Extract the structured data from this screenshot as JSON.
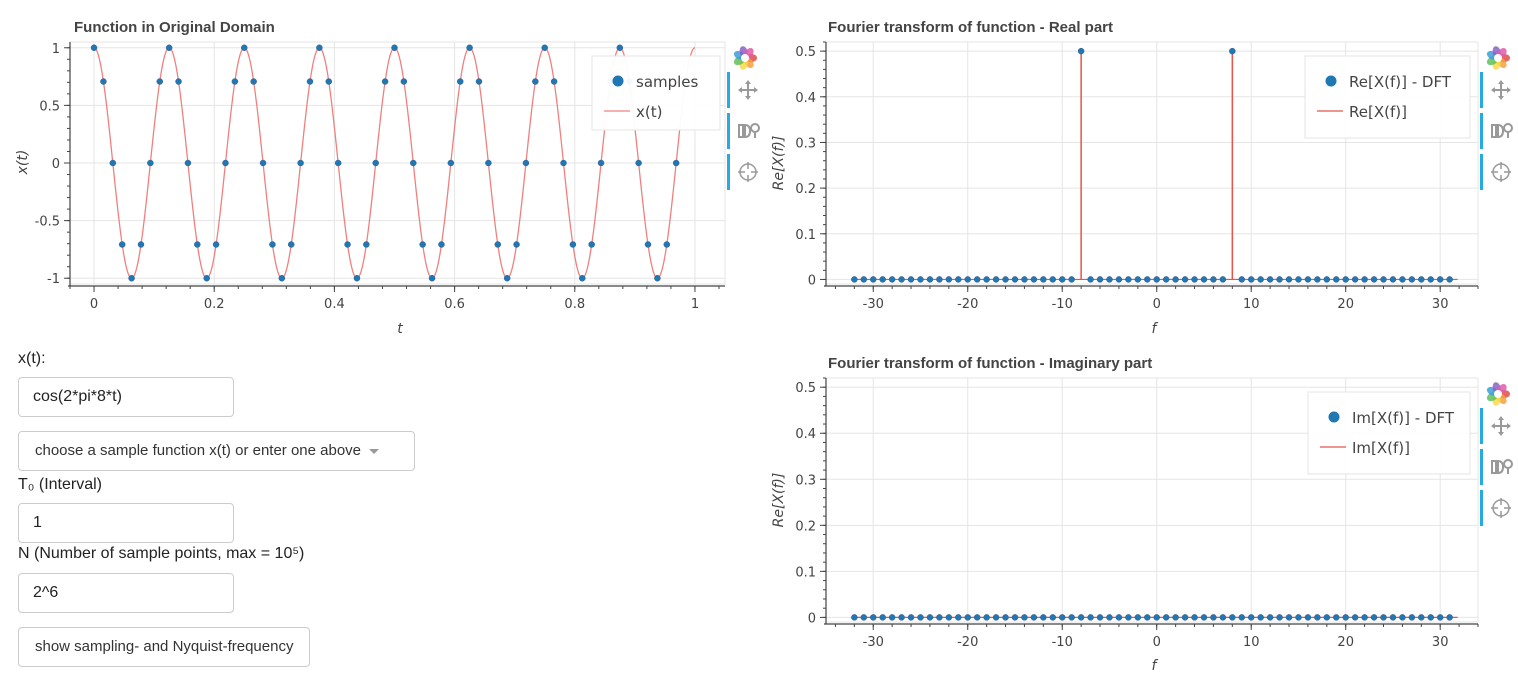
{
  "chart_data": [
    {
      "id": "time",
      "type": "line",
      "title": "Function in Original Domain",
      "xlabel": "t",
      "ylabel": "x(t)",
      "xlim": [
        -0.04,
        1.05
      ],
      "ylim": [
        -1.05,
        1.05
      ],
      "xticks": [
        0,
        0.2,
        0.4,
        0.6,
        0.8,
        1
      ],
      "xtick_labels": [
        "0",
        "0.2",
        "0.4",
        "0.6",
        "0.8",
        "1"
      ],
      "yticks": [
        -1,
        -0.5,
        0,
        0.5,
        1
      ],
      "ytick_labels": [
        "-1",
        "-0.5",
        "0",
        "0.5",
        "1"
      ],
      "grid": true,
      "legend": "top-right",
      "series": [
        {
          "name": "samples",
          "kind": "scatter",
          "color": "#1f77b4",
          "x": [
            0,
            0.015625,
            0.03125,
            0.046875,
            0.0625,
            0.078125,
            0.09375,
            0.109375,
            0.125,
            0.140625,
            0.15625,
            0.171875,
            0.1875,
            0.203125,
            0.21875,
            0.234375,
            0.25,
            0.265625,
            0.28125,
            0.296875,
            0.3125,
            0.328125,
            0.34375,
            0.359375,
            0.375,
            0.390625,
            0.40625,
            0.421875,
            0.4375,
            0.453125,
            0.46875,
            0.484375,
            0.5,
            0.515625,
            0.53125,
            0.546875,
            0.5625,
            0.578125,
            0.59375,
            0.609375,
            0.625,
            0.640625,
            0.65625,
            0.671875,
            0.6875,
            0.703125,
            0.71875,
            0.734375,
            0.75,
            0.765625,
            0.78125,
            0.796875,
            0.8125,
            0.828125,
            0.84375,
            0.859375,
            0.875,
            0.890625,
            0.90625,
            0.921875,
            0.9375,
            0.953125,
            0.96875,
            0.984375
          ],
          "y": [
            1,
            0.707,
            0,
            -0.707,
            -1,
            -0.707,
            0,
            0.707,
            1,
            0.707,
            0,
            -0.707,
            -1,
            -0.707,
            0,
            0.707,
            1,
            0.707,
            0,
            -0.707,
            -1,
            -0.707,
            0,
            0.707,
            1,
            0.707,
            0,
            -0.707,
            -1,
            -0.707,
            0,
            0.707,
            1,
            0.707,
            0,
            -0.707,
            -1,
            -0.707,
            0,
            0.707,
            1,
            0.707,
            0,
            -0.707,
            -1,
            -0.707,
            0,
            0.707,
            1,
            0.707,
            0,
            -0.707,
            -1,
            -0.707,
            0,
            0.707,
            1,
            0.707,
            0,
            -0.707,
            -1,
            -0.707,
            0,
            0.707
          ]
        },
        {
          "name": "x(t)",
          "kind": "line",
          "color": "#f08080",
          "function": "cos(2*pi*8*t)",
          "x_range": [
            0,
            1
          ]
        }
      ]
    },
    {
      "id": "real",
      "type": "scatter",
      "title": "Fourier transform of function - Real part",
      "xlabel": "f",
      "ylabel": "Re[X(f)]",
      "xlim": [
        -35,
        34
      ],
      "ylim": [
        -0.01,
        0.52
      ],
      "xticks": [
        -30,
        -20,
        -10,
        0,
        10,
        20,
        30
      ],
      "xtick_labels": [
        "-30",
        "-20",
        "-10",
        "0",
        "10",
        "20",
        "30"
      ],
      "yticks": [
        0,
        0.1,
        0.2,
        0.3,
        0.4,
        0.5
      ],
      "ytick_labels": [
        "0",
        "0.1",
        "0.2",
        "0.3",
        "0.4",
        "0.5"
      ],
      "grid": true,
      "legend": "top-right",
      "series": [
        {
          "name": "Re[X(f)] - DFT",
          "kind": "scatter",
          "color": "#1f77b4",
          "x_start": -32,
          "x_end": 31,
          "nonzero": {
            "-8": 0.5,
            "8": 0.5
          }
        },
        {
          "name": "Re[X(f)]",
          "kind": "stem",
          "color": "#e8534a",
          "x_range": [
            -32,
            31
          ],
          "spikes": {
            "-8": 0.5,
            "8": 0.5
          }
        }
      ]
    },
    {
      "id": "imag",
      "type": "scatter",
      "title": "Fourier transform of function - Imaginary part",
      "xlabel": "f",
      "ylabel": "Re[X(f)]",
      "xlim": [
        -35,
        34
      ],
      "ylim": [
        -0.01,
        0.52
      ],
      "xticks": [
        -30,
        -20,
        -10,
        0,
        10,
        20,
        30
      ],
      "xtick_labels": [
        "-30",
        "-20",
        "-10",
        "0",
        "10",
        "20",
        "30"
      ],
      "yticks": [
        0,
        0.1,
        0.2,
        0.3,
        0.4,
        0.5
      ],
      "ytick_labels": [
        "0",
        "0.1",
        "0.2",
        "0.3",
        "0.4",
        "0.5"
      ],
      "grid": true,
      "legend": "top-right",
      "series": [
        {
          "name": "Im[X(f)] - DFT",
          "kind": "scatter",
          "color": "#1f77b4",
          "x_start": -32,
          "x_end": 31,
          "nonzero": {}
        },
        {
          "name": "Im[X(f)]",
          "kind": "stem",
          "color": "#e8534a",
          "x_range": [
            -32,
            31
          ],
          "spikes": {}
        }
      ]
    }
  ],
  "toolbar": {
    "tools": [
      "bokeh-logo-icon",
      "pan-icon",
      "wheel-zoom-icon",
      "crosshair-icon"
    ]
  },
  "form": {
    "xt_label": "x(t):",
    "xt_value": "cos(2*pi*8*t)",
    "sample_dropdown": "choose a sample function x(t) or enter one above",
    "t0_label": "T₀ (Interval)",
    "t0_value": "1",
    "n_label": "N (Number of sample points, max = 10⁵)",
    "n_value": "2^6",
    "nyquist_button": "show sampling- and Nyquist-frequency"
  }
}
